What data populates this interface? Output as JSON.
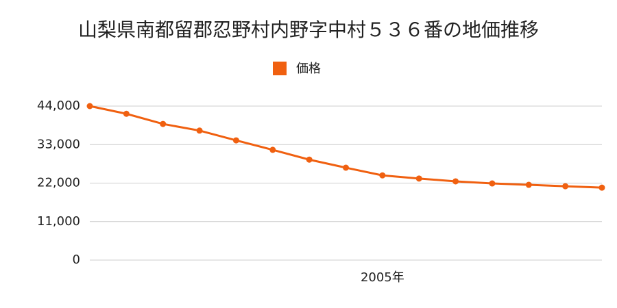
{
  "chart_data": {
    "type": "line",
    "title": "山梨県南都留郡忍野村内野字中村５３６番の地価推移",
    "categories": [
      null,
      null,
      null,
      null,
      null,
      null,
      null,
      null,
      "2005年",
      null,
      null,
      null,
      null,
      null,
      null
    ],
    "series": [
      {
        "name": "価格",
        "color": "#f06010",
        "values": [
          44000,
          41800,
          38900,
          37000,
          34200,
          31500,
          28700,
          26400,
          24200,
          23300,
          22500,
          21900,
          21500,
          21100,
          20700
        ]
      }
    ],
    "ylim": [
      0,
      44000
    ],
    "yticks": [
      0,
      {
        "value": 11000,
        "label": "11,000"
      },
      {
        "value": 22000,
        "label": "22,000"
      },
      {
        "value": 33000,
        "label": "33,000"
      },
      {
        "value": 44000,
        "label": "44,000"
      }
    ],
    "grid": true,
    "legend": "top"
  }
}
